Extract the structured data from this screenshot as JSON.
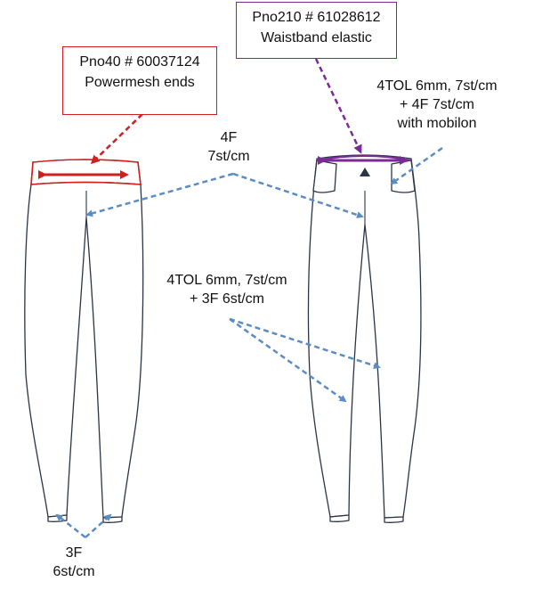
{
  "labels": {
    "powermesh": {
      "line1": "Pno40 # 60037124",
      "line2": "Powermesh ends",
      "color": "#d11f1f"
    },
    "waistband": {
      "line1": "Pno210 # 61028612",
      "line2": "Waistband elastic",
      "color": "#7b2a97"
    },
    "stitch_top_right": {
      "line1": "4TOL 6mm, 7st/cm",
      "line2": "+ 4F 7st/cm",
      "line3": "with mobilon"
    },
    "stitch_center_top": {
      "line1": "4F",
      "line2": "7st/cm"
    },
    "stitch_center_mid": {
      "line1": "4TOL 6mm, 7st/cm",
      "line2": "+ 3F 6st/cm"
    },
    "stitch_hem": {
      "line1": "3F",
      "line2": "6st/cm"
    }
  },
  "colors": {
    "arrow_blue": "#5b8cc4",
    "garment_outline": "#2b3545"
  }
}
